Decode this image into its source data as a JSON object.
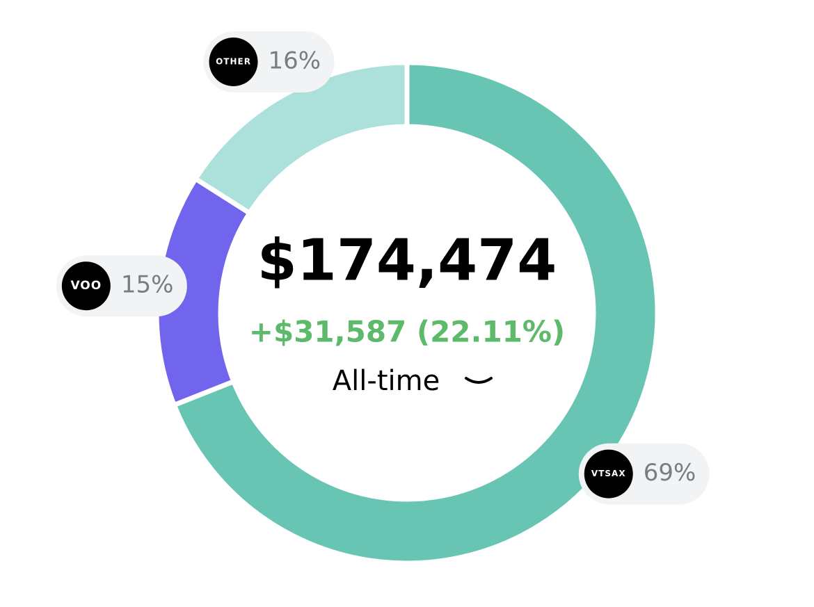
{
  "chart_data": {
    "type": "pie",
    "donut": true,
    "total": "$174,474",
    "change": "+$31,587 (22.11%)",
    "period": "All-time",
    "categories": [
      "VTSAX",
      "VOO",
      "OTHER"
    ],
    "values": [
      69,
      15,
      16
    ],
    "value_labels": [
      "69%",
      "15%",
      "16%"
    ],
    "colors": [
      "#68c5b4",
      "#7165ee",
      "#abe1da"
    ],
    "change_color": "#5dba6a"
  }
}
